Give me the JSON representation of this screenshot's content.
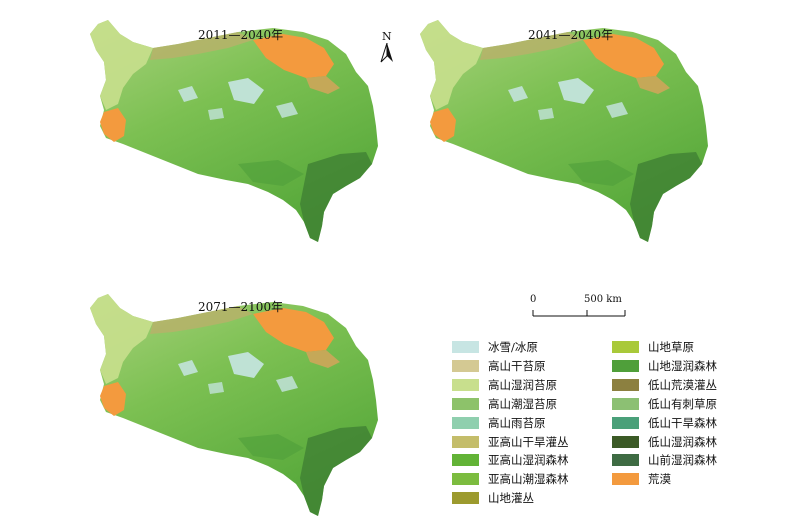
{
  "maps": [
    {
      "title": "2011—2040年"
    },
    {
      "title": "2041—2040年"
    },
    {
      "title": "2071—2100年"
    }
  ],
  "north_arrow": {
    "label": "N"
  },
  "scale_bar": {
    "start_label": "0",
    "end_label": "500 km"
  },
  "legend": {
    "items": [
      {
        "label": "冰雪/冰原",
        "color": "#c7e5e3"
      },
      {
        "label": "高山干苔原",
        "color": "#d4c993"
      },
      {
        "label": "高山湿润苔原",
        "color": "#c8df8d"
      },
      {
        "label": "高山潮湿苔原",
        "color": "#8dc26a"
      },
      {
        "label": "高山雨苔原",
        "color": "#8fcfae"
      },
      {
        "label": "亚高山干旱灌丛",
        "color": "#c4bd6a"
      },
      {
        "label": "亚高山湿润森林",
        "color": "#62b336"
      },
      {
        "label": "亚高山潮湿森林",
        "color": "#7cbc3f"
      },
      {
        "label": "山地灌丛",
        "color": "#9c9a2e"
      },
      {
        "label": "山地草原",
        "color": "#a9c93a"
      },
      {
        "label": "山地湿润森林",
        "color": "#4f9f3a"
      },
      {
        "label": "低山荒漠灌丛",
        "color": "#8c8040"
      },
      {
        "label": "低山有刺草原",
        "color": "#8cc073"
      },
      {
        "label": "低山干旱森林",
        "color": "#4aa079"
      },
      {
        "label": "低山湿润森林",
        "color": "#3b5a26"
      },
      {
        "label": "山前湿润森林",
        "color": "#3e6b43"
      },
      {
        "label": "荒漠",
        "color": "#f39a3e"
      }
    ]
  }
}
